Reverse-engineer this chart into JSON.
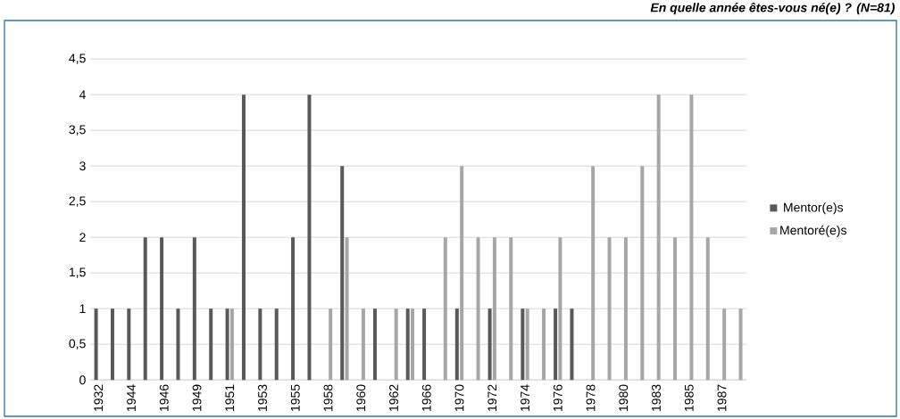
{
  "chart_data": {
    "type": "bar",
    "title": "En quelle année êtes-vous né(e) ? (N=81)",
    "categories": [
      "1932",
      null,
      "1944",
      null,
      "1946",
      null,
      "1949",
      null,
      "1951",
      null,
      "1953",
      null,
      "1955",
      null,
      "1958",
      null,
      "1960",
      null,
      "1962",
      null,
      "1966",
      null,
      "1970",
      null,
      "1972",
      null,
      "1974",
      null,
      "1976",
      null,
      "1978",
      null,
      "1980",
      null,
      "1983",
      null,
      "1985",
      null,
      "1987",
      null
    ],
    "series": [
      {
        "name": "Mentor(e)s",
        "color": "#595959",
        "values": [
          1,
          1,
          1,
          2,
          2,
          1,
          2,
          1,
          1,
          4,
          1,
          1,
          2,
          4,
          0,
          3,
          0,
          1,
          0,
          1,
          1,
          0,
          1,
          0,
          1,
          0,
          1,
          0,
          1,
          1,
          0,
          0,
          0,
          0,
          0,
          0,
          0,
          0,
          0,
          0
        ]
      },
      {
        "name": "Mentoré(e)s",
        "color": "#a6a6a6",
        "values": [
          0,
          0,
          0,
          0,
          0,
          0,
          0,
          0,
          1,
          0,
          0,
          0,
          0,
          0,
          1,
          2,
          1,
          0,
          1,
          1,
          0,
          2,
          3,
          2,
          2,
          2,
          1,
          1,
          2,
          0,
          3,
          2,
          2,
          3,
          4,
          2,
          4,
          2,
          1,
          1
        ]
      }
    ],
    "ylim": [
      0,
      4.5
    ],
    "yticks": [
      0,
      {
        "value": 0.5,
        "label": "0,5"
      },
      1,
      {
        "value": 1.5,
        "label": "1,5"
      },
      2,
      {
        "value": 2.5,
        "label": "2,5"
      },
      3,
      {
        "value": 3.5,
        "label": "3,5"
      },
      4,
      {
        "value": 4.5,
        "label": "4,5"
      }
    ],
    "grid": "y",
    "legend": "right"
  }
}
